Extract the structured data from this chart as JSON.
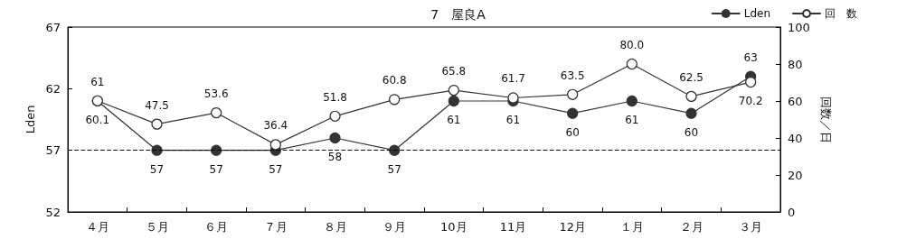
{
  "chart_data": {
    "type": "line",
    "title": "7　屋良A",
    "categories": [
      "４月",
      "５月",
      "６月",
      "７月",
      "８月",
      "９月",
      "10月",
      "11月",
      "12月",
      "１月",
      "２月",
      "３月"
    ],
    "series": [
      {
        "name": "Lden",
        "color": "#333333",
        "values": [
          61,
          57,
          57,
          57,
          58,
          57,
          61,
          61,
          60,
          61,
          60,
          63
        ],
        "value_labels": [
          "61",
          "57",
          "57",
          "57",
          "58",
          "57",
          "61",
          "61",
          "60",
          "61",
          "60",
          "63"
        ]
      },
      {
        "name": "回　数",
        "color": "#333333",
        "axis": "y2",
        "values": [
          60.1,
          47.5,
          53.6,
          36.4,
          51.8,
          60.8,
          65.8,
          61.7,
          63.5,
          80.0,
          62.5,
          70.2
        ],
        "value_labels": [
          "60.1",
          "47.5",
          "53.6",
          "36.4",
          "51.8",
          "60.8",
          "65.8",
          "61.7",
          "63.5",
          "80.0",
          "62.5",
          "70.2"
        ]
      }
    ],
    "ylabel": "Lden",
    "y2label": "回数／日",
    "ylim": [
      52,
      67
    ],
    "yticks": [
      52,
      57,
      62,
      67
    ],
    "y2lim": [
      0,
      100
    ],
    "y2ticks": [
      0,
      20,
      40,
      60,
      80,
      100
    ],
    "ref_lines": [
      {
        "axis": "y",
        "value": 57,
        "line_style": "dashed",
        "color": "#000000"
      }
    ],
    "legend": "top right",
    "grid": false,
    "marker": "circle",
    "line_style": "solid"
  }
}
